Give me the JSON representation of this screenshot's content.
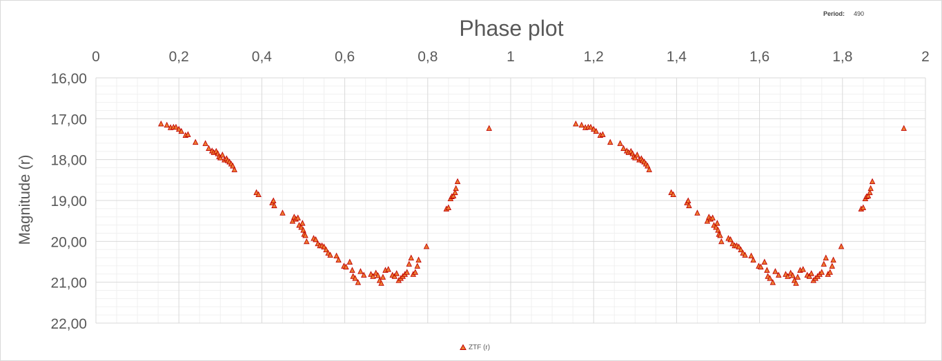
{
  "period": {
    "label": "Period:",
    "value": "490"
  },
  "chart_data": {
    "type": "scatter",
    "title": "Phase plot",
    "xlabel": "",
    "ylabel": "Magnitude (r)",
    "xlim": [
      0,
      2
    ],
    "ylim": [
      16,
      22
    ],
    "y_inverted": true,
    "x_axis_position": "top",
    "grid": true,
    "minor_grid": true,
    "legend": "bottom",
    "x_ticks": [
      "0",
      "0,2",
      "0,4",
      "0,6",
      "0,8",
      "1",
      "1,2",
      "1,4",
      "1,6",
      "1,8",
      "2"
    ],
    "y_ticks": [
      "16,00",
      "17,00",
      "18,00",
      "19,00",
      "20,00",
      "21,00",
      "22,00"
    ],
    "series": [
      {
        "name": "ZTF (r)",
        "marker": "triangle",
        "fill": "#ED7D31",
        "stroke": "#C00000",
        "points": [
          [
            0.157,
            17.12
          ],
          [
            0.171,
            17.15
          ],
          [
            0.18,
            17.21
          ],
          [
            0.187,
            17.2
          ],
          [
            0.193,
            17.2
          ],
          [
            0.2,
            17.25
          ],
          [
            0.206,
            17.3
          ],
          [
            0.216,
            17.4
          ],
          [
            0.222,
            17.38
          ],
          [
            0.24,
            17.57
          ],
          [
            0.264,
            17.6
          ],
          [
            0.272,
            17.72
          ],
          [
            0.28,
            17.78
          ],
          [
            0.284,
            17.82
          ],
          [
            0.29,
            17.79
          ],
          [
            0.294,
            17.85
          ],
          [
            0.297,
            17.92
          ],
          [
            0.3,
            17.95
          ],
          [
            0.305,
            17.88
          ],
          [
            0.31,
            18.0
          ],
          [
            0.315,
            17.97
          ],
          [
            0.318,
            18.02
          ],
          [
            0.322,
            18.05
          ],
          [
            0.326,
            18.1
          ],
          [
            0.33,
            18.15
          ],
          [
            0.334,
            18.24
          ],
          [
            0.387,
            18.8
          ],
          [
            0.392,
            18.85
          ],
          [
            0.425,
            19.05
          ],
          [
            0.428,
            19.0
          ],
          [
            0.43,
            19.12
          ],
          [
            0.45,
            19.3
          ],
          [
            0.474,
            19.5
          ],
          [
            0.478,
            19.4
          ],
          [
            0.482,
            19.45
          ],
          [
            0.487,
            19.42
          ],
          [
            0.49,
            19.6
          ],
          [
            0.495,
            19.65
          ],
          [
            0.498,
            19.55
          ],
          [
            0.5,
            19.72
          ],
          [
            0.502,
            19.82
          ],
          [
            0.505,
            19.85
          ],
          [
            0.508,
            20.0
          ],
          [
            0.525,
            19.92
          ],
          [
            0.53,
            19.95
          ],
          [
            0.535,
            20.05
          ],
          [
            0.54,
            20.1
          ],
          [
            0.545,
            20.1
          ],
          [
            0.55,
            20.13
          ],
          [
            0.555,
            20.2
          ],
          [
            0.56,
            20.28
          ],
          [
            0.565,
            20.33
          ],
          [
            0.58,
            20.35
          ],
          [
            0.585,
            20.45
          ],
          [
            0.598,
            20.6
          ],
          [
            0.603,
            20.62
          ],
          [
            0.612,
            20.5
          ],
          [
            0.618,
            20.7
          ],
          [
            0.62,
            20.85
          ],
          [
            0.625,
            20.9
          ],
          [
            0.632,
            21.0
          ],
          [
            0.638,
            20.73
          ],
          [
            0.646,
            20.82
          ],
          [
            0.663,
            20.8
          ],
          [
            0.668,
            20.85
          ],
          [
            0.675,
            20.77
          ],
          [
            0.68,
            20.83
          ],
          [
            0.684,
            20.95
          ],
          [
            0.688,
            21.02
          ],
          [
            0.692,
            20.87
          ],
          [
            0.698,
            20.7
          ],
          [
            0.705,
            20.68
          ],
          [
            0.715,
            20.82
          ],
          [
            0.72,
            20.85
          ],
          [
            0.725,
            20.78
          ],
          [
            0.73,
            20.95
          ],
          [
            0.735,
            20.9
          ],
          [
            0.74,
            20.85
          ],
          [
            0.745,
            20.8
          ],
          [
            0.75,
            20.75
          ],
          [
            0.755,
            20.55
          ],
          [
            0.76,
            20.4
          ],
          [
            0.765,
            20.8
          ],
          [
            0.77,
            20.75
          ],
          [
            0.775,
            20.6
          ],
          [
            0.778,
            20.45
          ],
          [
            0.797,
            20.12
          ],
          [
            0.845,
            19.2
          ],
          [
            0.85,
            19.17
          ],
          [
            0.855,
            18.95
          ],
          [
            0.858,
            18.9
          ],
          [
            0.862,
            18.88
          ],
          [
            0.866,
            18.8
          ],
          [
            0.868,
            18.7
          ],
          [
            0.872,
            18.53
          ],
          [
            0.948,
            17.23
          ]
        ]
      }
    ]
  }
}
